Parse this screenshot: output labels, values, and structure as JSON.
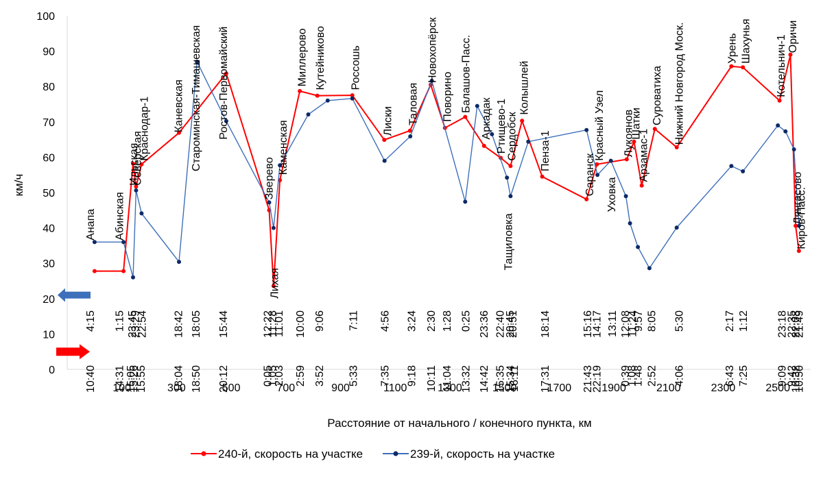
{
  "chart_data": {
    "type": "line",
    "xlabel": "Расстояние от начального / конечного пункта, км",
    "ylabel": "км/ч",
    "xlim": [
      -100,
      2620
    ],
    "ylim": [
      0,
      100
    ],
    "x_ticks": [
      100,
      300,
      500,
      700,
      900,
      1100,
      1300,
      1500,
      1700,
      1900,
      2100,
      2300,
      2500
    ],
    "y_ticks": [
      0,
      10,
      20,
      30,
      40,
      50,
      60,
      70,
      80,
      90,
      100
    ],
    "grid": false,
    "legend_position": "bottom",
    "series": [
      {
        "name": "240-й, скорость на участке",
        "color": "#ff0000",
        "marker_color": "#ff0000",
        "x": [
          0,
          106,
          141,
          152,
          172,
          309,
          482,
          639,
          655,
          678,
          751,
          815,
          943,
          1060,
          1154,
          1230,
          1282,
          1356,
          1425,
          1486,
          1522,
          1564,
          1638,
          1800,
          1838,
          1947,
          1974,
          2002,
          2050,
          2130,
          2330,
          2372,
          2506,
          2546,
          2565,
          2577
        ],
        "y": [
          27.8,
          27.8,
          58.2,
          51.7,
          58.0,
          66.9,
          83.7,
          45.0,
          23.6,
          53.5,
          78.7,
          77.4,
          77.5,
          64.9,
          67.5,
          80.5,
          68.3,
          71.4,
          63.2,
          59.8,
          57.5,
          70.3,
          54.5,
          48.1,
          58.0,
          59.4,
          64.4,
          52.0,
          68.0,
          62.8,
          85.7,
          85.4,
          76.0,
          89.0,
          40.6,
          33.5
        ]
      },
      {
        "name": "239-й, скорость на участке",
        "color": "#3d6fba",
        "marker_color": "#0d2a66",
        "x": [
          0,
          106,
          141,
          152,
          172,
          309,
          375,
          482,
          639,
          655,
          678,
          782,
          853,
          943,
          1061,
          1155,
          1234,
          1356,
          1400,
          1454,
          1509,
          1522,
          1587,
          1800,
          1840,
          1889,
          1944,
          1959,
          1988,
          2030,
          2130,
          2330,
          2372,
          2500,
          2528,
          2559,
          2577
        ],
        "y": [
          36.0,
          36.0,
          26.0,
          50.6,
          44.1,
          30.4,
          87.0,
          70.2,
          47.2,
          40.0,
          57.7,
          72.1,
          76.0,
          76.6,
          59.0,
          65.9,
          81.6,
          47.4,
          74.5,
          66.5,
          54.2,
          49.0,
          64.4,
          67.7,
          55.0,
          59.0,
          49.0,
          41.3,
          34.6,
          28.6,
          40.1,
          57.5,
          56.0,
          69.0,
          67.3,
          62.2,
          40.6
        ]
      }
    ],
    "stations": [
      {
        "name": "Анапа",
        "x": -17,
        "y": 36.5
      },
      {
        "name": "Абинская",
        "x": 89,
        "y": 36.5
      },
      {
        "name": "Ильская",
        "x": 141,
        "y": 52
      },
      {
        "name": "Северская",
        "x": 155,
        "y": 52
      },
      {
        "name": "Краснодар-1",
        "x": 180,
        "y": 59
      },
      {
        "name": "Каневская",
        "x": 305,
        "y": 67
      },
      {
        "name": "Староминская-Тимашевская",
        "x": 369,
        "y": 56
      },
      {
        "name": "Ростов-Первомайский",
        "x": 470,
        "y": 65
      },
      {
        "name": "Зверево",
        "x": 636,
        "y": 48
      },
      {
        "name": "Лихая",
        "x": 657,
        "y": 20
      },
      {
        "name": "Каменская",
        "x": 688,
        "y": 55
      },
      {
        "name": "Миллерово",
        "x": 757,
        "y": 80
      },
      {
        "name": "Кутейниково",
        "x": 823,
        "y": 79
      },
      {
        "name": "Россошь",
        "x": 953,
        "y": 79
      },
      {
        "name": "Лиски",
        "x": 1070,
        "y": 66
      },
      {
        "name": "Таловая",
        "x": 1163,
        "y": 69
      },
      {
        "name": "Новохопёрск",
        "x": 1234,
        "y": 81
      },
      {
        "name": "Поворино",
        "x": 1289,
        "y": 70
      },
      {
        "name": "Балашов-Пасс.",
        "x": 1356,
        "y": 72.5
      },
      {
        "name": "Аркадак",
        "x": 1431,
        "y": 65
      },
      {
        "name": "Ртищево-1",
        "x": 1486,
        "y": 61
      },
      {
        "name": "Тащиловка",
        "x": 1512,
        "y": 28
      },
      {
        "name": "Сердобск",
        "x": 1525,
        "y": 59
      },
      {
        "name": "Колышлей",
        "x": 1570,
        "y": 72
      },
      {
        "name": "Пенза-1",
        "x": 1647,
        "y": 56
      },
      {
        "name": "Саранск",
        "x": 1810,
        "y": 49
      },
      {
        "name": "Красный Узел",
        "x": 1845,
        "y": 59
      },
      {
        "name": "Уховка",
        "x": 1890,
        "y": 44.5
      },
      {
        "name": "Лукоянов",
        "x": 1951,
        "y": 60
      },
      {
        "name": "Шатки",
        "x": 1979,
        "y": 65
      },
      {
        "name": "Арзамас-1",
        "x": 2006,
        "y": 53
      },
      {
        "name": "Суроватиха",
        "x": 2056,
        "y": 69
      },
      {
        "name": "Нижний Новгород Моск.",
        "x": 2137,
        "y": 63.5
      },
      {
        "name": "Урень",
        "x": 2330,
        "y": 86.5
      },
      {
        "name": "Шахунья",
        "x": 2380,
        "y": 86.5
      },
      {
        "name": "Котельнич-1",
        "x": 2510,
        "y": 77
      },
      {
        "name": "Оричи",
        "x": 2552,
        "y": 89.5
      },
      {
        "name": "Лянгасово",
        "x": 2570,
        "y": 41
      },
      {
        "name": "Киров-Пасс.",
        "x": 2583,
        "y": 34
      }
    ],
    "times_239": [
      {
        "t": "4:15",
        "x": -17
      },
      {
        "t": "1:15",
        "x": 89
      },
      {
        "t": "23:45",
        "x": 136
      },
      {
        "t": "23:29",
        "x": 147
      },
      {
        "t": "22:54",
        "x": 172
      },
      {
        "t": "18:42",
        "x": 305
      },
      {
        "t": "18:05",
        "x": 369
      },
      {
        "t": "15:44",
        "x": 470
      },
      {
        "t": "12:22",
        "x": 632
      },
      {
        "t": "11:28",
        "x": 649
      },
      {
        "t": "11:01",
        "x": 673
      },
      {
        "t": "10:00",
        "x": 750
      },
      {
        "t": "9:06",
        "x": 821
      },
      {
        "t": "7:11",
        "x": 945
      },
      {
        "t": "4:56",
        "x": 1061
      },
      {
        "t": "3:24",
        "x": 1158
      },
      {
        "t": "2:30",
        "x": 1230
      },
      {
        "t": "1:28",
        "x": 1287
      },
      {
        "t": "0:25",
        "x": 1356
      },
      {
        "t": "23:36",
        "x": 1423
      },
      {
        "t": "22:40",
        "x": 1482
      },
      {
        "t": "20:45",
        "x": 1518
      },
      {
        "t": "20:51",
        "x": 1529
      },
      {
        "t": "18:14",
        "x": 1647
      },
      {
        "t": "15:16",
        "x": 1802
      },
      {
        "t": "14:17",
        "x": 1836
      },
      {
        "t": "13:11",
        "x": 1892
      },
      {
        "t": "12:08",
        "x": 1940
      },
      {
        "t": "11:24",
        "x": 1966
      },
      {
        "t": "9:57",
        "x": 1988
      },
      {
        "t": "8:05",
        "x": 2037
      },
      {
        "t": "5:30",
        "x": 2137
      },
      {
        "t": "2:17",
        "x": 2322
      },
      {
        "t": "1:12",
        "x": 2372
      },
      {
        "t": "23:18",
        "x": 2513
      },
      {
        "t": "22:35",
        "x": 2548
      },
      {
        "t": "22:08",
        "x": 2563
      },
      {
        "t": "21:49",
        "x": 2576
      }
    ],
    "times_240": [
      {
        "t": "10:40",
        "x": -17
      },
      {
        "t": "14:31",
        "x": 89
      },
      {
        "t": "15:05",
        "x": 131
      },
      {
        "t": "15:26",
        "x": 141
      },
      {
        "t": "15:55",
        "x": 168
      },
      {
        "t": "18:04",
        "x": 305
      },
      {
        "t": "18:50",
        "x": 369
      },
      {
        "t": "20:12",
        "x": 470
      },
      {
        "t": "0:05",
        "x": 632
      },
      {
        "t": "1:05",
        "x": 649
      },
      {
        "t": "2:03",
        "x": 673
      },
      {
        "t": "2:59",
        "x": 750
      },
      {
        "t": "3:52",
        "x": 821
      },
      {
        "t": "5:33",
        "x": 945
      },
      {
        "t": "7:35",
        "x": 1061
      },
      {
        "t": "9:18",
        "x": 1158
      },
      {
        "t": "10:11",
        "x": 1230
      },
      {
        "t": "11:04",
        "x": 1287
      },
      {
        "t": "13:32",
        "x": 1356
      },
      {
        "t": "14:42",
        "x": 1423
      },
      {
        "t": "15:35",
        "x": 1482
      },
      {
        "t": "15:34",
        "x": 1520
      },
      {
        "t": "16:11",
        "x": 1534
      },
      {
        "t": "17:31",
        "x": 1647
      },
      {
        "t": "21:43",
        "x": 1802
      },
      {
        "t": "22:19",
        "x": 1836
      },
      {
        "t": "0:39",
        "x": 1940
      },
      {
        "t": "1:08",
        "x": 1964
      },
      {
        "t": "1:48",
        "x": 1986
      },
      {
        "t": "2:52",
        "x": 2037
      },
      {
        "t": "4:06",
        "x": 2137
      },
      {
        "t": "6:43",
        "x": 2322
      },
      {
        "t": "7:25",
        "x": 2372
      },
      {
        "t": "9:09",
        "x": 2513
      },
      {
        "t": "9:42",
        "x": 2548
      },
      {
        "t": "10:32",
        "x": 2563
      },
      {
        "t": "10:50",
        "x": 2576
      }
    ],
    "arrows": [
      {
        "series": "239",
        "color": "#3d6fba",
        "y": 21
      },
      {
        "series": "240",
        "color": "#ff0000",
        "y": 5
      }
    ]
  }
}
